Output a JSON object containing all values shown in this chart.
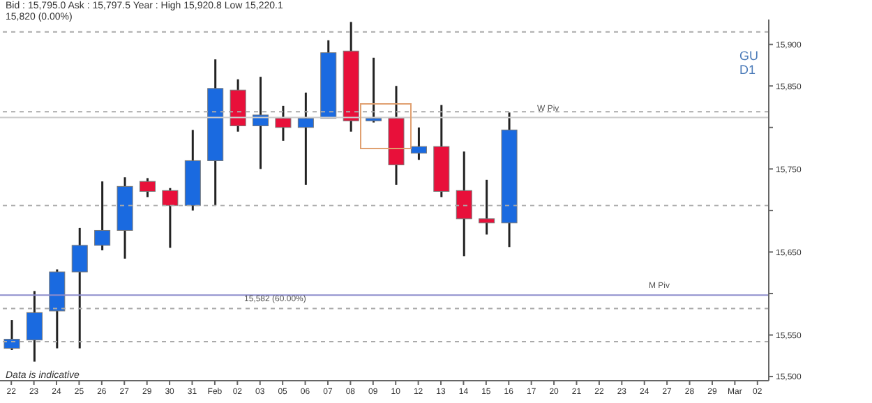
{
  "chart_data": {
    "type": "candlestick",
    "subtitle": "Bid : 15,795.0 Ask : 15,797.5 Year : High 15,920.8 Low 15,220.1",
    "categories": [
      "22",
      "23",
      "24",
      "25",
      "26",
      "27",
      "29",
      "30",
      "31",
      "Feb",
      "02",
      "03",
      "05",
      "06",
      "07",
      "08",
      "09",
      "10",
      "12",
      "13",
      "14",
      "15",
      "16",
      "17",
      "20",
      "21",
      "22",
      "23",
      "24",
      "27",
      "28",
      "29",
      "Mar",
      "02"
    ],
    "ohlc": [
      [
        15534,
        15568,
        15532,
        15545
      ],
      [
        15544,
        15603,
        15518,
        15577
      ],
      [
        15579,
        15629,
        15534,
        15626
      ],
      [
        15626,
        15679,
        15534,
        15658
      ],
      [
        15658,
        15735,
        15652,
        15676
      ],
      [
        15676,
        15740,
        15642,
        15729
      ],
      [
        15735,
        15739,
        15716,
        15723
      ],
      [
        15724,
        15727,
        15655,
        15706
      ],
      [
        15706,
        15797,
        15700,
        15760
      ],
      [
        15760,
        15882,
        15706,
        15847
      ],
      [
        15845,
        15858,
        15795,
        15802
      ],
      [
        15802,
        15861,
        15750,
        15815
      ],
      [
        15811,
        15826,
        15784,
        15800
      ],
      [
        15800,
        15842,
        15731,
        15811
      ],
      [
        15811,
        15905,
        15811,
        15890
      ],
      [
        15892,
        15927,
        15795,
        15808
      ],
      [
        15808,
        15884,
        15806,
        15811
      ],
      [
        15811,
        15850,
        15731,
        15755
      ],
      [
        15769,
        15800,
        15761,
        15777
      ],
      [
        15777,
        15827,
        15716,
        15723
      ],
      [
        15724,
        15771,
        15645,
        15690
      ],
      [
        15690,
        15737,
        15671,
        15685
      ],
      [
        15685,
        15818,
        15656,
        15797
      ],
      null,
      null,
      null,
      null,
      null,
      null,
      null,
      null,
      null,
      null,
      null
    ],
    "colors": [
      "#1a6ae0",
      "#1a6ae0",
      "#1a6ae0",
      "#1a6ae0",
      "#1a6ae0",
      "#1a6ae0",
      "#e8103a",
      "#e8103a",
      "#1a6ae0",
      "#1a6ae0",
      "#e8103a",
      "#1a6ae0",
      "#e8103a",
      "#1a6ae0",
      "#1a6ae0",
      "#e8103a",
      "#1a6ae0",
      "#e8103a",
      "#1a6ae0",
      "#e8103a",
      "#e8103a",
      "#e8103a",
      "#1a6ae0",
      null,
      null,
      null,
      null,
      null,
      null,
      null,
      null,
      null,
      null,
      null
    ],
    "ylim": [
      15495,
      15930
    ],
    "yticks": [
      {
        "value": 15500,
        "label": "15,500"
      },
      {
        "value": 15550,
        "label": "15,550"
      },
      {
        "value": 15600,
        "label": null
      },
      {
        "value": 15650,
        "label": "15,650"
      },
      {
        "value": 15700,
        "label": null
      },
      {
        "value": 15750,
        "label": "15,750"
      },
      {
        "value": 15800,
        "label": null
      },
      {
        "value": 15850,
        "label": "15,850"
      },
      {
        "value": 15900,
        "label": "15,900"
      }
    ],
    "ref_lines": [
      {
        "axis": "y",
        "value": 15915,
        "label": null,
        "color": "#aaaaaa",
        "line_style": "dashed"
      },
      {
        "axis": "y",
        "value": 15819,
        "label": null,
        "color": "#aaaaaa",
        "line_style": "dashed"
      },
      {
        "axis": "y",
        "value": 15812,
        "label": "W Piv",
        "color": "#cccccc",
        "line_style": "solid"
      },
      {
        "axis": "y",
        "value": 15706,
        "label": null,
        "color": "#aaaaaa",
        "line_style": "dashed"
      },
      {
        "axis": "y",
        "value": 15598,
        "label": "M Piv",
        "color": "#8c8ccc",
        "line_style": "solid"
      },
      {
        "axis": "y",
        "value": 15582,
        "label": "15,582 (60.00%)",
        "color": "#aaaaaa",
        "line_style": "dashed"
      },
      {
        "axis": "y",
        "value": 15542,
        "label": null,
        "color": "#aaaaaa",
        "line_style": "dashed"
      }
    ],
    "annotations": [
      "15,820 (0.00%)",
      "GU",
      "D1",
      "Data is indicative"
    ]
  }
}
